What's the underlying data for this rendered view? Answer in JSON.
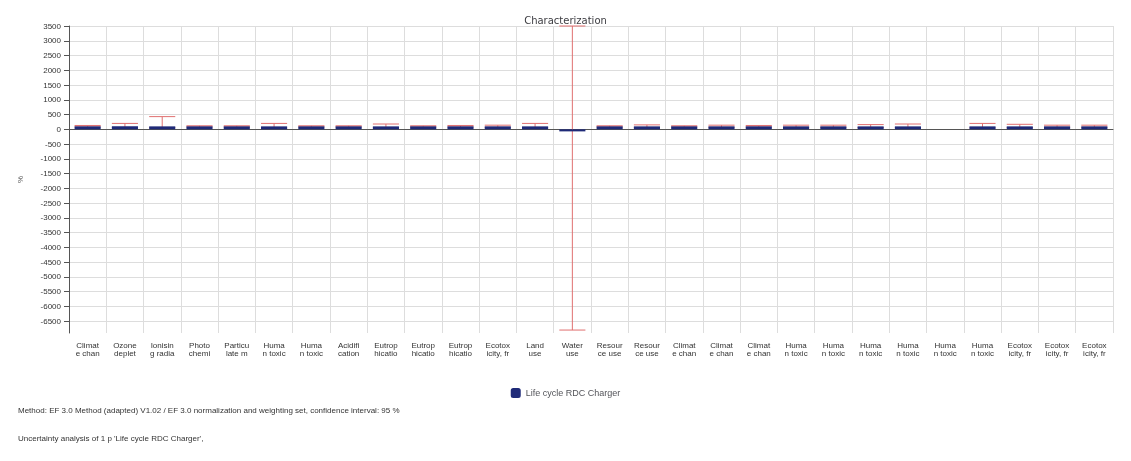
{
  "chart_data": {
    "type": "bar",
    "title": "Characterization",
    "ylabel": "%",
    "categories": [
      "Climat\ne chan",
      "Ozone\ndeplet",
      "Ionisin\ng radia",
      "Photo\nchemi",
      "Particu\nlate m",
      "Huma\nn toxic",
      "Huma\nn toxic",
      "Acidifi\ncation",
      "Eutrop\nhicatio",
      "Eutrop\nhicatio",
      "Eutrop\nhicatio",
      "Ecotox\nicity, fr",
      "Land\nuse",
      "Water\nuse",
      "Resour\nce use",
      "Resour\nce use",
      "Climat\ne chan",
      "Climat\ne chan",
      "Climat\ne chan",
      "Huma\nn toxic",
      "Huma\nn toxic",
      "Huma\nn toxic",
      "Huma\nn toxic",
      "Huma\nn toxic",
      "Huma\nn toxic",
      "Ecotox\nicity, fr",
      "Ecotox\nicity, fr",
      "Ecotox\nicity, fr"
    ],
    "series": [
      {
        "name": "Life cycle RDC Charger",
        "color": "#1f2a78",
        "values": [
          100,
          100,
          100,
          100,
          100,
          100,
          100,
          100,
          100,
          100,
          100,
          100,
          100,
          -70,
          100,
          100,
          100,
          100,
          100,
          100,
          100,
          100,
          100,
          null,
          100,
          100,
          100,
          100
        ],
        "errors": [
          [
            80,
            130
          ],
          [
            60,
            200
          ],
          [
            60,
            430
          ],
          [
            80,
            120
          ],
          [
            80,
            120
          ],
          [
            40,
            200
          ],
          [
            80,
            120
          ],
          [
            80,
            120
          ],
          [
            50,
            180
          ],
          [
            80,
            120
          ],
          [
            80,
            130
          ],
          [
            70,
            140
          ],
          [
            50,
            200
          ],
          [
            -6800,
            3500
          ],
          [
            80,
            120
          ],
          [
            60,
            150
          ],
          [
            80,
            120
          ],
          [
            70,
            140
          ],
          [
            80,
            130
          ],
          [
            70,
            140
          ],
          [
            70,
            140
          ],
          [
            60,
            160
          ],
          [
            60,
            180
          ],
          null,
          [
            50,
            200
          ],
          [
            60,
            170
          ],
          [
            70,
            140
          ],
          [
            70,
            140
          ]
        ]
      }
    ],
    "ylim": [
      -6900,
      3500
    ],
    "yticks": [
      3500,
      3000,
      2500,
      2000,
      1500,
      1000,
      500,
      0,
      -500,
      -1000,
      -1500,
      -2000,
      -2500,
      -3000,
      -3500,
      -4000,
      -4500,
      -5000,
      -5500,
      -6000,
      -6500
    ],
    "grid": true,
    "legend": "bottom",
    "annotations": [
      "Method: EF 3.0 Method (adapted) V1.02 / EF 3.0 normalization and weighting set, confidence interval: 95 %",
      "Uncertainty analysis of 1 p 'Life cycle RDC Charger',"
    ]
  }
}
